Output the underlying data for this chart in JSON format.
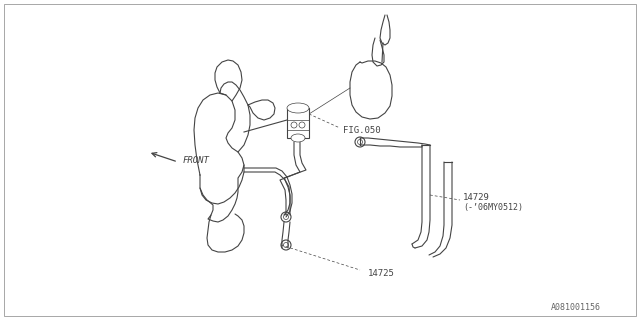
{
  "background_color": "#ffffff",
  "fig_width": 6.4,
  "fig_height": 3.2,
  "dpi": 100,
  "labels": {
    "fig050": "FIG.050",
    "part14725": "14725",
    "part14729": "14729",
    "part14729_sub": "(-’06MY0512)",
    "front": "FRONT",
    "watermark": "A081001156"
  },
  "line_color": "#444444",
  "line_width": 0.8,
  "thin_line": 0.5,
  "font_size": 6.5,
  "small_font": 6.0
}
